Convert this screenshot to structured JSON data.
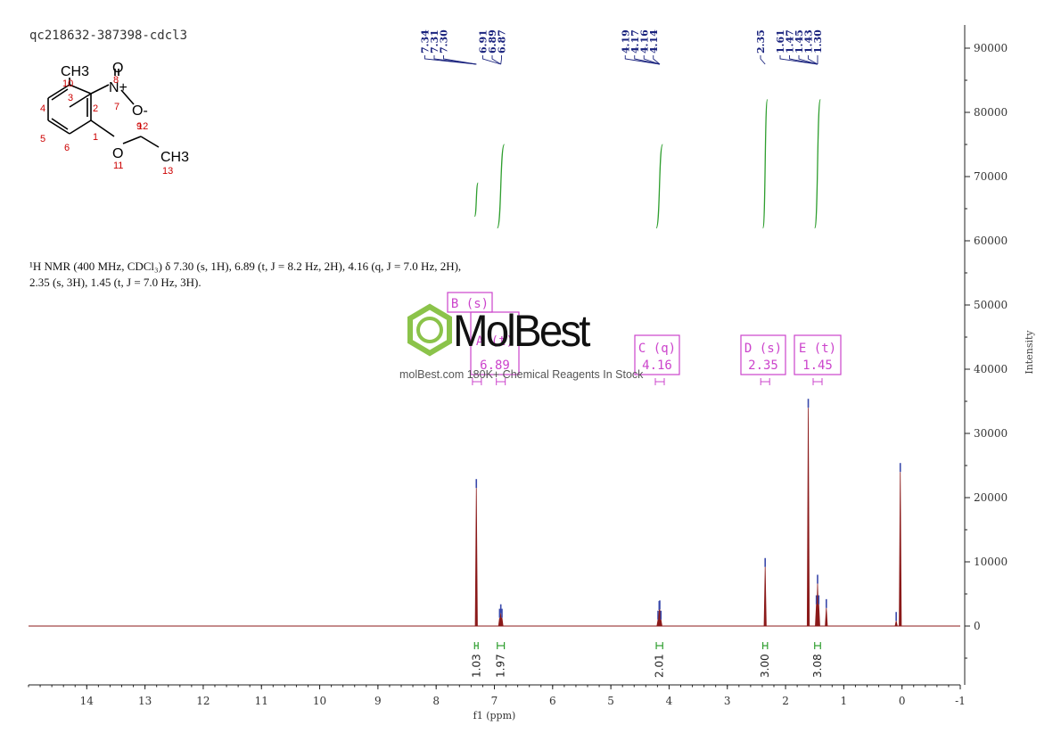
{
  "sample_id": "qc218632-387398-cdcl3",
  "description": {
    "line1": "¹H NMR (400 MHz, CDCl₃) δ 7.30 (s, 1H), 6.89 (t, J = 8.2 Hz, 2H), 4.16 (q, J = 7.0 Hz, 2H),",
    "line2": "2.35 (s, 3H), 1.45 (t, J = 7.0 Hz, 3H)."
  },
  "watermark": {
    "brand": "MolBest",
    "tagline": "molBest.com 180K+ Chemical Reagents In Stock"
  },
  "structure": {
    "atoms": [
      "CH3",
      "N+",
      "O",
      "O-",
      "O",
      "CH3"
    ],
    "numbers": [
      "1",
      "2",
      "3",
      "4",
      "5",
      "6",
      "7",
      "8",
      "9",
      "10",
      "11",
      "12",
      "13"
    ]
  },
  "colors": {
    "spectrum": "#8b1a1a",
    "peak_labels": "#1a237e",
    "integral": "#2e9e2e",
    "multiplet_box": "#cc44cc",
    "axis": "#222222"
  },
  "chart_data": {
    "type": "line",
    "xlabel": "f1 (ppm)",
    "ylabel": "Intensity",
    "xlim": [
      15,
      -1
    ],
    "ylim": [
      -10000,
      92000
    ],
    "x_ticks": [
      14,
      13,
      12,
      11,
      10,
      9,
      8,
      7,
      6,
      5,
      4,
      3,
      2,
      1,
      0,
      -1
    ],
    "y_ticks": [
      0,
      10000,
      20000,
      30000,
      40000,
      50000,
      60000,
      70000,
      80000,
      90000
    ],
    "peaks": [
      {
        "ppm": 7.31,
        "height": 21500
      },
      {
        "ppm": 6.91,
        "height": 1300
      },
      {
        "ppm": 6.89,
        "height": 2000
      },
      {
        "ppm": 6.87,
        "height": 1300
      },
      {
        "ppm": 4.19,
        "height": 1000
      },
      {
        "ppm": 4.17,
        "height": 2500
      },
      {
        "ppm": 4.16,
        "height": 2600
      },
      {
        "ppm": 4.14,
        "height": 1000
      },
      {
        "ppm": 2.35,
        "height": 9200
      },
      {
        "ppm": 1.61,
        "height": 34000
      },
      {
        "ppm": 1.47,
        "height": 3400
      },
      {
        "ppm": 1.45,
        "height": 6600
      },
      {
        "ppm": 1.43,
        "height": 3400
      },
      {
        "ppm": 1.3,
        "height": 2800
      },
      {
        "ppm": 0.1,
        "height": 800
      },
      {
        "ppm": 0.03,
        "height": 24000
      }
    ],
    "peak_label_groups": [
      {
        "labels": [
          "7.34",
          "7.31",
          "7.30"
        ],
        "ppm": 7.31
      },
      {
        "labels": [
          "6.91",
          "6.89",
          "6.87"
        ],
        "ppm": 6.89
      },
      {
        "labels": [
          "4.19",
          "4.17",
          "4.16",
          "4.14"
        ],
        "ppm": 4.16
      },
      {
        "labels": [
          "2.35"
        ],
        "ppm": 2.35
      },
      {
        "labels": [
          "1.61",
          "1.47",
          "1.45",
          "1.43",
          "1.30"
        ],
        "ppm": 1.45
      }
    ],
    "multiplets": [
      {
        "letter": "B (s)",
        "value": "",
        "ppm": 7.3
      },
      {
        "letter": "A (t)",
        "value": "6.89",
        "ppm": 6.89
      },
      {
        "letter": "C (q)",
        "value": "4.16",
        "ppm": 4.16
      },
      {
        "letter": "D (s)",
        "value": "2.35",
        "ppm": 2.35
      },
      {
        "letter": "E (t)",
        "value": "1.45",
        "ppm": 1.45
      }
    ],
    "integrals": [
      {
        "ppm": 7.31,
        "value": "1.03",
        "range": [
          7.34,
          7.28
        ]
      },
      {
        "ppm": 6.89,
        "value": "1.97",
        "range": [
          6.95,
          6.83
        ]
      },
      {
        "ppm": 4.16,
        "value": "2.01",
        "range": [
          4.22,
          4.11
        ]
      },
      {
        "ppm": 2.35,
        "value": "3.00",
        "range": [
          2.39,
          2.31
        ]
      },
      {
        "ppm": 1.45,
        "value": "3.08",
        "range": [
          1.5,
          1.4
        ]
      }
    ],
    "integral_curves": [
      {
        "ppm_from": 7.34,
        "ppm_to": 7.28,
        "from": 63800,
        "to": 69000
      },
      {
        "ppm_from": 6.95,
        "ppm_to": 6.83,
        "from": 62000,
        "to": 75000
      },
      {
        "ppm_from": 4.22,
        "ppm_to": 4.11,
        "from": 62000,
        "to": 75000
      },
      {
        "ppm_from": 2.39,
        "ppm_to": 2.31,
        "from": 62000,
        "to": 82000
      },
      {
        "ppm_from": 1.5,
        "ppm_to": 1.4,
        "from": 62000,
        "to": 82000
      }
    ]
  }
}
